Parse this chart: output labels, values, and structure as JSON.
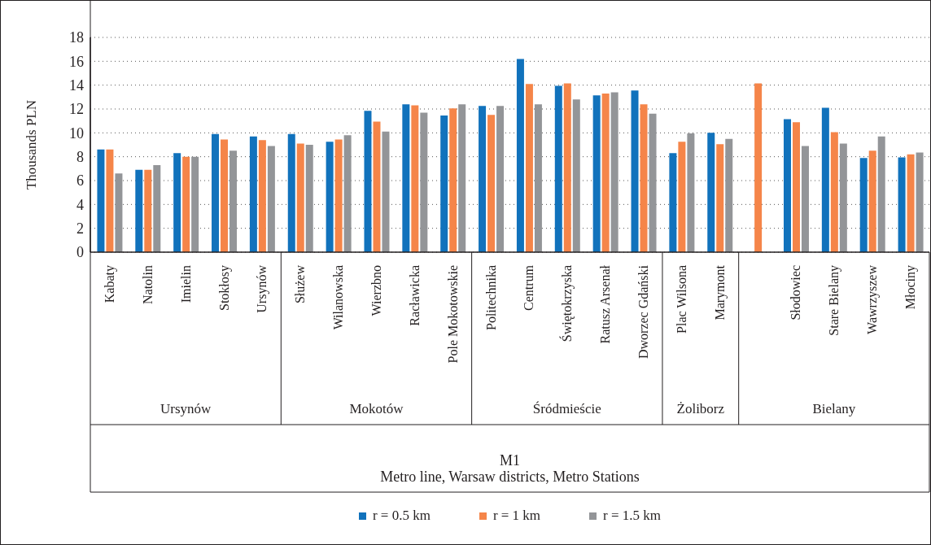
{
  "chart_data": {
    "type": "bar",
    "categories": [
      "Kabaty",
      "Natolin",
      "Imielin",
      "Stokłosy",
      "Ursynów",
      "Służew",
      "Wilanowska",
      "Wierzbno",
      "Racławicka",
      "Pole Mokotowskie",
      "Politechnika",
      "Centrum",
      "Świętokrzyska",
      "Ratusz Arsenał",
      "Dworzec Gdański",
      "Plac Wilsona",
      "Marymont",
      null,
      "Słodowiec",
      "Stare Bielany",
      "Wawrzyszew",
      "Młociny"
    ],
    "series": [
      {
        "name": "r = 0.5 km",
        "color": "#1172bc",
        "values": [
          8.6,
          6.9,
          8.3,
          9.9,
          9.7,
          9.9,
          9.25,
          11.85,
          12.4,
          11.45,
          12.25,
          16.2,
          13.95,
          13.15,
          13.55,
          8.3,
          10.0,
          null,
          11.15,
          12.1,
          7.9,
          7.95
        ]
      },
      {
        "name": "r = 1 km",
        "color": "#f58549",
        "values": [
          8.6,
          6.9,
          8.0,
          9.45,
          9.4,
          9.1,
          9.45,
          10.95,
          12.3,
          12.05,
          11.5,
          14.1,
          14.15,
          13.3,
          12.4,
          9.25,
          9.05,
          14.15,
          10.9,
          10.05,
          8.5,
          8.2
        ]
      },
      {
        "name": "r = 1.5 km",
        "color": "#939598",
        "values": [
          6.6,
          7.3,
          8.0,
          8.5,
          8.9,
          9.0,
          9.8,
          10.1,
          11.7,
          12.4,
          12.25,
          12.4,
          12.8,
          13.4,
          11.6,
          9.95,
          9.5,
          null,
          8.9,
          9.1,
          9.7,
          8.35
        ]
      }
    ],
    "ylabel": "Thousands PLN",
    "annotations": [
      "Ursynów",
      "Mokotów",
      "Śródmieście",
      "Żoliborz",
      "Bielany",
      "M1",
      "Metro line, Warsaw districts, Metro Stations"
    ],
    "ylim": [
      0,
      18
    ],
    "yticks": [
      0,
      2,
      4,
      6,
      8,
      10,
      12,
      14,
      16,
      18
    ],
    "grid": "y",
    "legend": "bottom"
  }
}
